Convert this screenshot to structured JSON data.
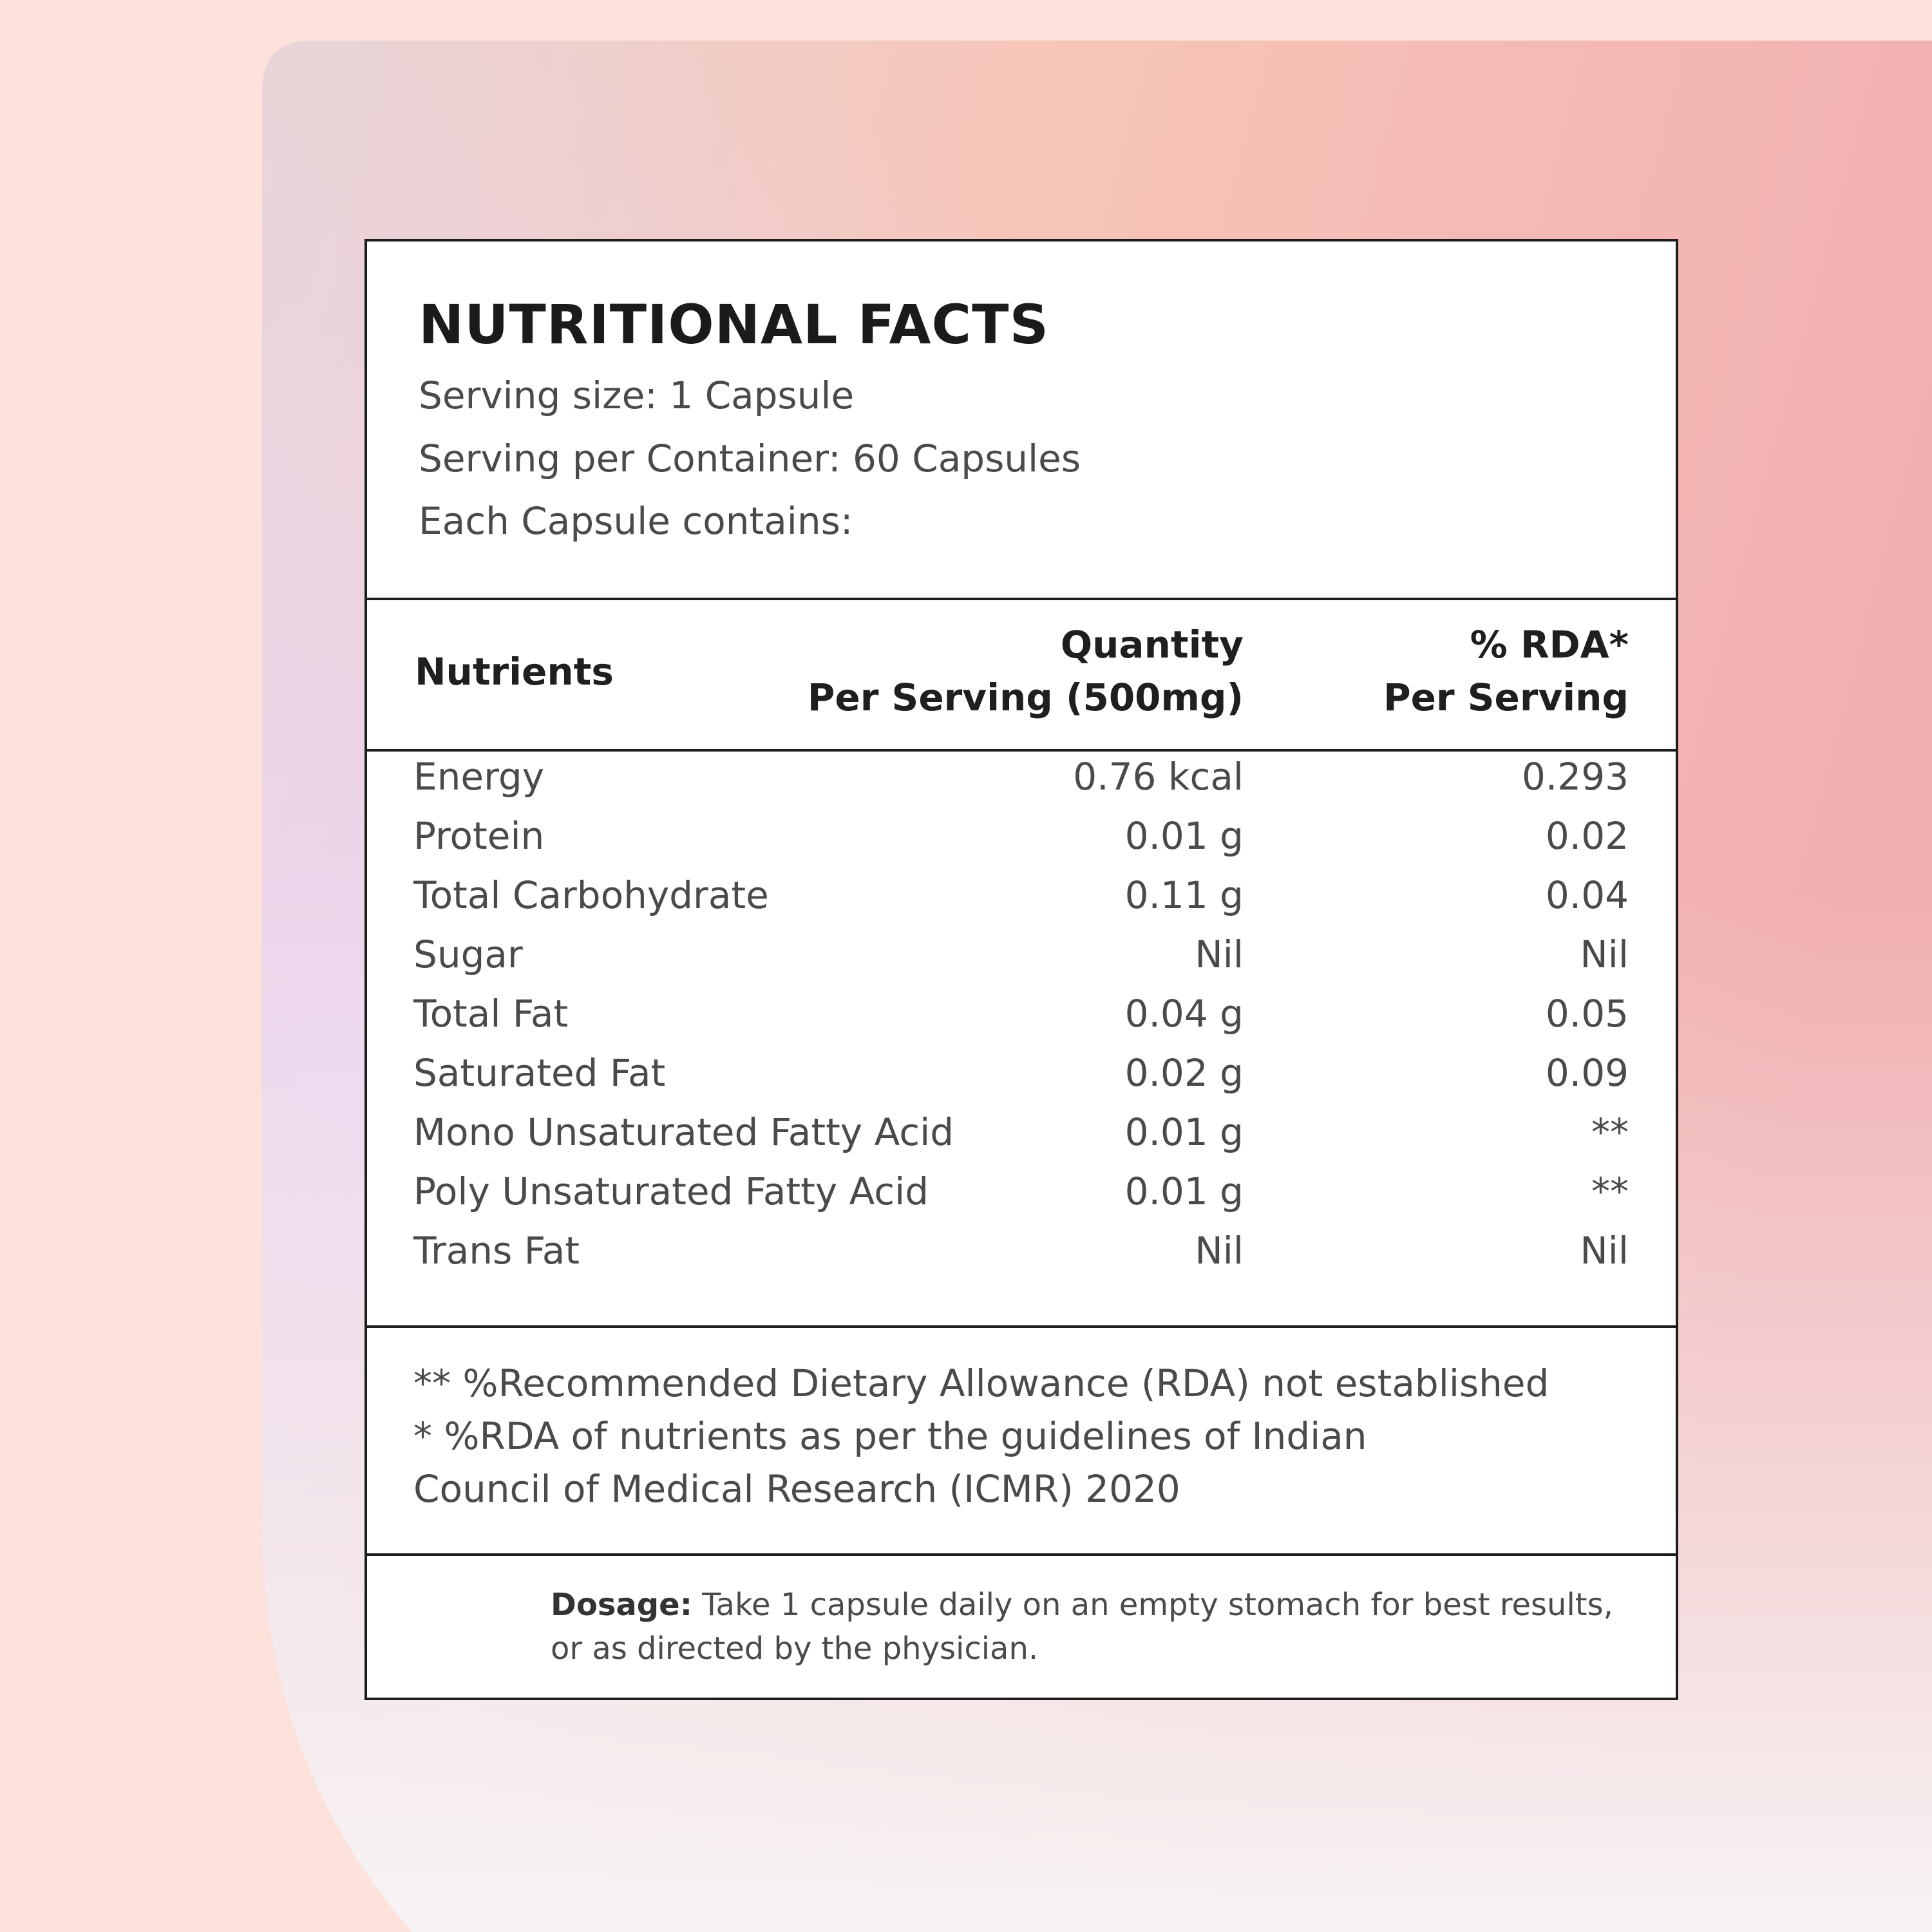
{
  "colors": {
    "background": "#fde2db",
    "card_pink": "#f2b2b2",
    "card_lavender": "#ecd7ef",
    "border": "#1d1d1d",
    "text": "#4a4a4a"
  },
  "label": {
    "title": "NUTRITIONAL FACTS",
    "serving_size": "Serving size: 1 Capsule",
    "servings_per_container": "Serving per Container: 60 Capsules",
    "each_capsule": "Each Capsule contains:"
  },
  "table": {
    "headers": {
      "nutrients": "Nutrients",
      "quantity_line1": "Quantity",
      "quantity_line2": "Per Serving (500mg)",
      "rda_line1": "% RDA*",
      "rda_line2": "Per Serving"
    },
    "rows": [
      {
        "nutrient": "Energy",
        "quantity": "0.76 kcal",
        "rda": "0.293"
      },
      {
        "nutrient": "Protein",
        "quantity": "0.01 g",
        "rda": "0.02"
      },
      {
        "nutrient": "Total Carbohydrate",
        "quantity": "0.11 g",
        "rda": "0.04"
      },
      {
        "nutrient": "Sugar",
        "quantity": "Nil",
        "rda": "Nil"
      },
      {
        "nutrient": "Total Fat",
        "quantity": "0.04 g",
        "rda": "0.05"
      },
      {
        "nutrient": "Saturated Fat",
        "quantity": "0.02 g",
        "rda": "0.09"
      },
      {
        "nutrient": "Mono Unsaturated Fatty Acid",
        "quantity": "0.01 g",
        "rda": "**"
      },
      {
        "nutrient": "Poly Unsaturated Fatty Acid",
        "quantity": "0.01 g",
        "rda": "**"
      },
      {
        "nutrient": "Trans Fat",
        "quantity": "Nil",
        "rda": "Nil"
      }
    ]
  },
  "footnotes": [
    "** %Recommended Dietary Allowance (RDA) not established",
    "* %RDA of nutrients as per the guidelines of Indian",
    "Council of Medical Research (ICMR) 2020"
  ],
  "dosage": {
    "label": "Dosage:",
    "text": " Take 1 capsule daily on an empty stomach for best results, or as directed by the physician."
  }
}
